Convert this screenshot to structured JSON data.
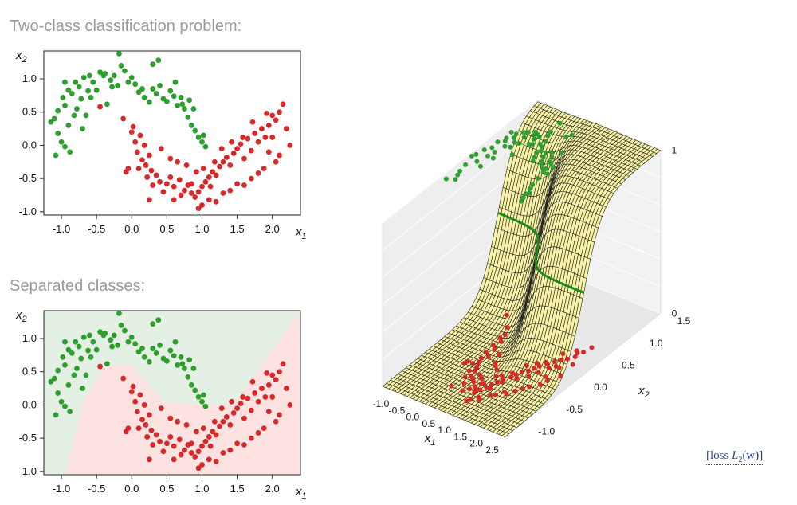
{
  "headings": {
    "top": "Two-class classification problem:",
    "bottom": "Separated classes:"
  },
  "loss_link": {
    "open": "[loss ",
    "math": "L",
    "sub": "2",
    "arg": "(w)",
    "close": "]"
  },
  "colors": {
    "class_green": "#2e9e2e",
    "class_red": "#d62a2a",
    "region_green": "#e3f0e3",
    "region_red": "#fde2e2",
    "surface_fill": "#f8f2a4",
    "boundary": "#1b8a1b"
  },
  "chart_data": [
    {
      "type": "scatter",
      "title": "Two-class classification problem:",
      "xlabel": "x1",
      "ylabel": "x2",
      "xlim": [
        -1.25,
        2.4
      ],
      "ylim": [
        -1.05,
        1.42
      ],
      "xticks": [
        "-1.0",
        "-0.5",
        "0.0",
        "0.5",
        "1.0",
        "1.5",
        "2.0"
      ],
      "xtick_values": [
        -1.0,
        -0.5,
        0.0,
        0.5,
        1.0,
        1.5,
        2.0
      ],
      "yticks": [
        "-1.0",
        "-0.5",
        "0.0",
        "0.5",
        "1.0"
      ],
      "ytick_values": [
        -1.0,
        -0.5,
        0.0,
        0.5,
        1.0
      ],
      "series": [
        {
          "class": "green",
          "points": [
            [
              -1.05,
              0.52
            ],
            [
              -0.98,
              0.72
            ],
            [
              -0.95,
              0.6
            ],
            [
              -0.9,
              0.83
            ],
            [
              -0.85,
              0.78
            ],
            [
              -0.8,
              0.95
            ],
            [
              -0.75,
              0.88
            ],
            [
              -0.72,
              0.7
            ],
            [
              -0.68,
              1.02
            ],
            [
              -0.6,
              1.05
            ],
            [
              -0.55,
              0.95
            ],
            [
              -0.5,
              0.83
            ],
            [
              -0.45,
              1.1
            ],
            [
              -0.38,
              1.08
            ],
            [
              -0.3,
              0.98
            ],
            [
              -0.25,
              1.05
            ],
            [
              -0.2,
              0.9
            ],
            [
              -0.15,
              1.2
            ],
            [
              -0.1,
              1.12
            ],
            [
              -0.05,
              0.95
            ],
            [
              0.0,
              1.02
            ],
            [
              0.05,
              0.92
            ],
            [
              0.1,
              0.8
            ],
            [
              0.18,
              0.72
            ],
            [
              0.25,
              0.65
            ],
            [
              0.3,
              0.85
            ],
            [
              0.35,
              0.78
            ],
            [
              0.4,
              0.9
            ],
            [
              0.45,
              0.7
            ],
            [
              0.5,
              0.66
            ],
            [
              0.55,
              0.82
            ],
            [
              0.6,
              0.74
            ],
            [
              0.65,
              0.6
            ],
            [
              0.7,
              0.72
            ],
            [
              0.75,
              0.55
            ],
            [
              0.8,
              0.42
            ],
            [
              0.85,
              0.3
            ],
            [
              0.9,
              0.22
            ],
            [
              0.95,
              0.12
            ],
            [
              1.0,
              0.05
            ],
            [
              1.05,
              -0.02
            ],
            [
              -1.1,
              0.4
            ],
            [
              -1.15,
              0.35
            ],
            [
              -1.05,
              0.18
            ],
            [
              -1.0,
              0.05
            ],
            [
              -0.95,
              -0.02
            ],
            [
              -0.88,
              -0.1
            ],
            [
              -1.08,
              -0.15
            ],
            [
              -0.9,
              0.3
            ],
            [
              -0.82,
              0.45
            ],
            [
              -0.78,
              0.55
            ],
            [
              -0.7,
              0.25
            ],
            [
              -0.65,
              0.45
            ],
            [
              -0.62,
              0.82
            ],
            [
              -0.58,
              0.72
            ],
            [
              -0.35,
              0.62
            ],
            [
              -0.28,
              0.88
            ],
            [
              -0.18,
              1.38
            ],
            [
              0.38,
              1.28
            ],
            [
              0.3,
              1.22
            ],
            [
              0.62,
              0.95
            ],
            [
              0.72,
              0.62
            ],
            [
              0.82,
              0.68
            ],
            [
              0.88,
              0.55
            ],
            [
              -0.95,
              0.95
            ],
            [
              -0.4,
              1.05
            ],
            [
              0.15,
              0.85
            ],
            [
              1.02,
              0.15
            ]
          ]
        },
        {
          "class": "red",
          "points": [
            [
              -0.45,
              0.58
            ],
            [
              -0.12,
              0.4
            ],
            [
              0.0,
              0.2
            ],
            [
              0.05,
              0.05
            ],
            [
              0.08,
              -0.1
            ],
            [
              0.15,
              -0.22
            ],
            [
              0.2,
              -0.3
            ],
            [
              0.28,
              -0.38
            ],
            [
              0.35,
              -0.45
            ],
            [
              0.4,
              -0.55
            ],
            [
              0.5,
              -0.58
            ],
            [
              0.55,
              -0.48
            ],
            [
              0.6,
              -0.62
            ],
            [
              0.68,
              -0.52
            ],
            [
              0.75,
              -0.68
            ],
            [
              0.8,
              -0.6
            ],
            [
              0.85,
              -0.72
            ],
            [
              0.9,
              -0.78
            ],
            [
              0.95,
              -0.7
            ],
            [
              1.0,
              -0.62
            ],
            [
              1.05,
              -0.55
            ],
            [
              1.1,
              -0.48
            ],
            [
              1.15,
              -0.4
            ],
            [
              1.2,
              -0.45
            ],
            [
              1.25,
              -0.32
            ],
            [
              1.3,
              -0.25
            ],
            [
              1.35,
              -0.18
            ],
            [
              1.4,
              -0.3
            ],
            [
              1.45,
              -0.12
            ],
            [
              1.5,
              -0.05
            ],
            [
              1.55,
              0.02
            ],
            [
              1.6,
              -0.2
            ],
            [
              1.65,
              0.1
            ],
            [
              1.7,
              -0.08
            ],
            [
              1.75,
              0.18
            ],
            [
              1.8,
              0.05
            ],
            [
              1.85,
              0.25
            ],
            [
              1.9,
              0.12
            ],
            [
              1.95,
              0.3
            ],
            [
              2.0,
              0.45
            ],
            [
              2.05,
              0.38
            ],
            [
              2.1,
              0.5
            ],
            [
              2.15,
              0.62
            ],
            [
              2.2,
              0.25
            ],
            [
              2.25,
              0.0
            ],
            [
              2.1,
              -0.15
            ],
            [
              2.05,
              -0.25
            ],
            [
              1.95,
              -0.1
            ],
            [
              1.88,
              -0.35
            ],
            [
              1.8,
              -0.42
            ],
            [
              1.7,
              -0.5
            ],
            [
              1.6,
              -0.6
            ],
            [
              1.5,
              -0.58
            ],
            [
              1.4,
              -0.68
            ],
            [
              1.3,
              -0.72
            ],
            [
              1.2,
              -0.85
            ],
            [
              1.1,
              -0.82
            ],
            [
              1.0,
              -0.9
            ],
            [
              0.95,
              -0.95
            ],
            [
              0.85,
              -0.58
            ],
            [
              0.7,
              -0.75
            ],
            [
              0.6,
              -0.82
            ],
            [
              0.45,
              -0.7
            ],
            [
              0.3,
              -0.6
            ],
            [
              0.22,
              -0.48
            ],
            [
              0.1,
              -0.35
            ],
            [
              -0.05,
              -0.35
            ],
            [
              -0.08,
              -0.4
            ],
            [
              0.02,
              0.28
            ],
            [
              0.12,
              0.15
            ],
            [
              0.18,
              0.0
            ],
            [
              0.25,
              -0.15
            ],
            [
              0.42,
              -0.05
            ],
            [
              0.55,
              -0.2
            ],
            [
              0.65,
              -0.25
            ],
            [
              0.78,
              -0.3
            ],
            [
              0.92,
              -0.4
            ],
            [
              1.02,
              -0.35
            ],
            [
              1.18,
              -0.25
            ],
            [
              1.28,
              -0.05
            ],
            [
              1.42,
              0.05
            ],
            [
              1.58,
              0.12
            ],
            [
              1.72,
              0.35
            ],
            [
              1.92,
              0.48
            ],
            [
              2.0,
              0.12
            ],
            [
              1.12,
              -0.62
            ],
            [
              0.25,
              -0.82
            ]
          ]
        }
      ]
    },
    {
      "type": "scatter",
      "title": "Separated classes:",
      "xlabel": "x1",
      "ylabel": "x2",
      "xlim": [
        -1.25,
        2.4
      ],
      "ylim": [
        -1.05,
        1.42
      ],
      "xticks": [
        "-1.0",
        "-0.5",
        "0.0",
        "0.5",
        "1.0",
        "1.5",
        "2.0"
      ],
      "xtick_values": [
        -1.0,
        -0.5,
        0.0,
        0.5,
        1.0,
        1.5,
        2.0
      ],
      "yticks": [
        "-1.0",
        "-0.5",
        "0.0",
        "0.5",
        "1.0"
      ],
      "ytick_values": [
        -1.0,
        -0.5,
        0.0,
        0.5,
        1.0
      ],
      "regions": {
        "decision_boundary": [
          [
            -0.95,
            -1.05
          ],
          [
            -0.7,
            0.02
          ],
          [
            -0.38,
            0.58
          ],
          [
            -0.02,
            0.62
          ],
          [
            0.45,
            0.05
          ],
          [
            1.05,
            0.0
          ],
          [
            1.45,
            0.02
          ],
          [
            2.4,
            1.42
          ]
        ]
      }
    },
    {
      "type": "surface",
      "xlabel": "x1",
      "ylabel": "x2",
      "xticks": [
        "-1.0",
        "-0.5",
        "0.0",
        "0.5",
        "1.0",
        "1.5",
        "2.0",
        "2.5"
      ],
      "yticks": [
        "-1.0",
        "-0.5",
        "0.0",
        "0.5",
        "1.0",
        "1.5"
      ],
      "zticks": [
        "0",
        "1"
      ],
      "xlim": [
        -1.25,
        2.6
      ],
      "ylim": [
        -1.2,
        1.6
      ],
      "zlim": [
        0,
        1
      ]
    }
  ]
}
